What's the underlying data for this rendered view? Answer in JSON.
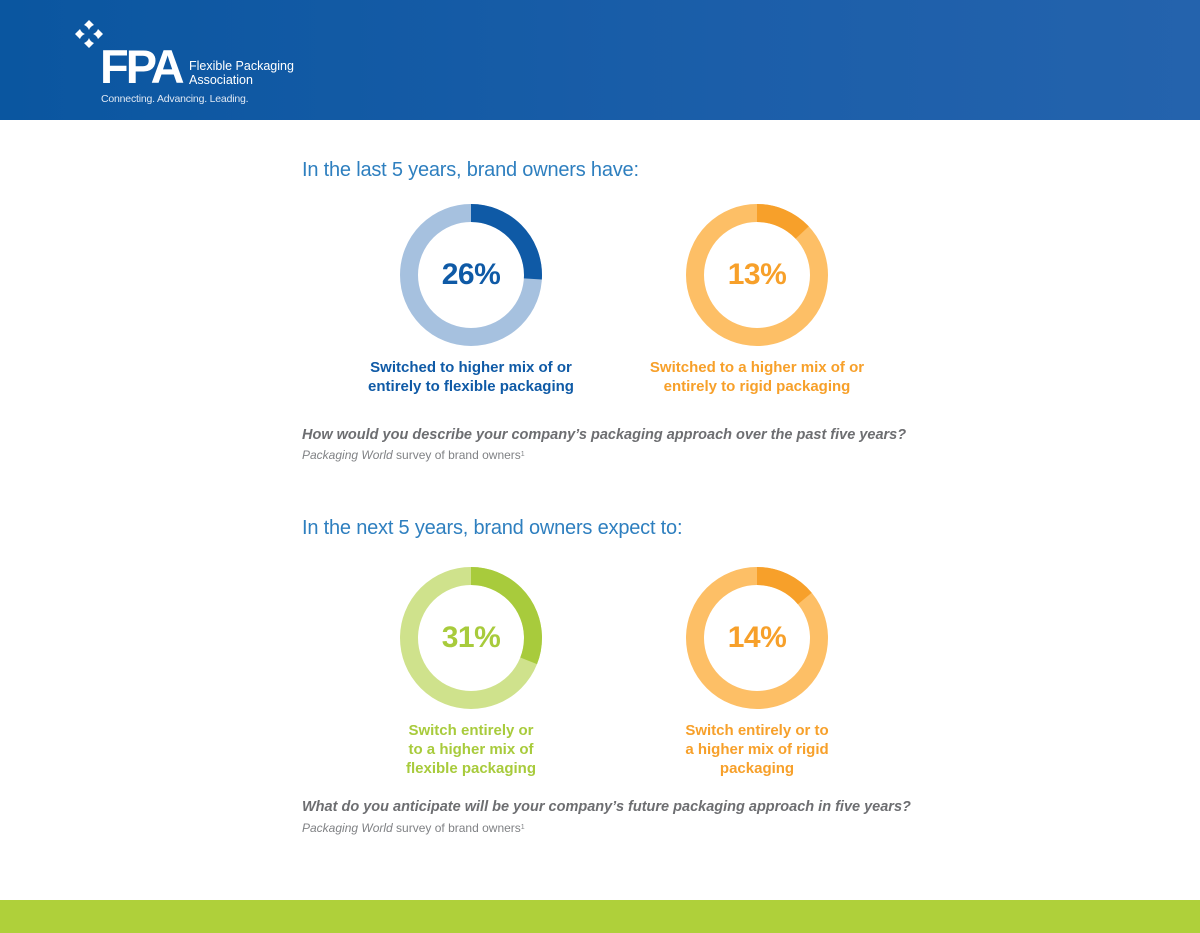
{
  "header": {
    "logo_icon": "fpa-star-diamond-icon",
    "logo_acronym": "FPA",
    "logo_name_line1": "Flexible Packaging",
    "logo_name_line2": "Association",
    "tagline": "Connecting. Advancing. Leading.",
    "background_color": "#1b5ea9"
  },
  "footer": {
    "bar_color": "#afd03a"
  },
  "chart_data": [
    {
      "type": "pie",
      "variant": "donut",
      "title": "In the last 5 years, brand owners have:",
      "question": "How would you describe your company’s packaging approach over the past five years?",
      "source_italic": "Packaging World",
      "source_rest": " survey of brand owners",
      "source_footnote": "1",
      "series": [
        {
          "name": "flexible",
          "value": 26,
          "display": "26%",
          "label_line1": "Switched to higher mix of or",
          "label_line2": "entirely to flexible packaging",
          "label_line3": "",
          "color": "#0f5aa6",
          "track_color": "#a6c1df"
        },
        {
          "name": "rigid",
          "value": 13,
          "display": "13%",
          "label_line1": "Switched to a higher mix of or",
          "label_line2": "entirely to rigid packaging",
          "label_line3": "",
          "color": "#f7a02a",
          "track_color": "#fdbf66"
        }
      ]
    },
    {
      "type": "pie",
      "variant": "donut",
      "title": "In the next 5 years, brand owners expect to:",
      "question": "What do you anticipate will be your company’s future packaging approach in five years?",
      "source_italic": "Packaging World",
      "source_rest": " survey of brand owners",
      "source_footnote": "1",
      "series": [
        {
          "name": "flexible",
          "value": 31,
          "display": "31%",
          "label_line1": "Switch entirely or",
          "label_line2": "to a higher mix of",
          "label_line3": "flexible packaging",
          "color": "#a8cb3c",
          "track_color": "#cfe28c"
        },
        {
          "name": "rigid",
          "value": 14,
          "display": "14%",
          "label_line1": "Switch entirely or to",
          "label_line2": "a higher mix of rigid",
          "label_line3": "packaging",
          "color": "#f7a02a",
          "track_color": "#fdbf66"
        }
      ]
    }
  ]
}
